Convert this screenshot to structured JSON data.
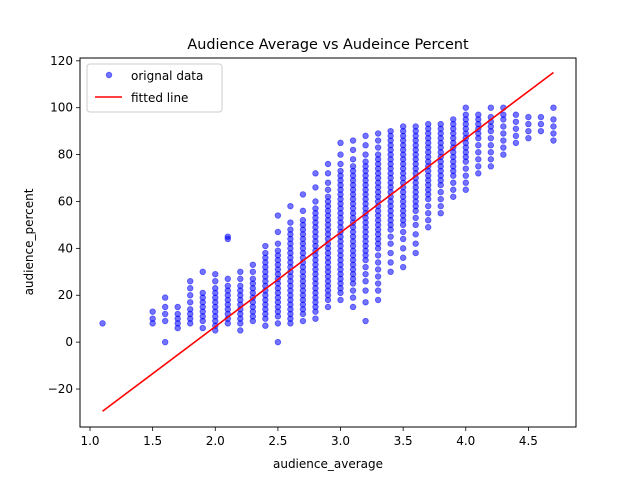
{
  "chart_data": {
    "type": "scatter",
    "title": "Audience Average vs Audeince Percent",
    "xlabel": "audience_average",
    "ylabel": "audience_percent",
    "xlim": [
      0.92,
      4.88
    ],
    "ylim": [
      -36.2,
      121.2
    ],
    "xticks": [
      "1.0",
      "1.5",
      "2.0",
      "2.5",
      "3.0",
      "3.5",
      "4.0",
      "4.5"
    ],
    "xtick_values": [
      1.0,
      1.5,
      2.0,
      2.5,
      3.0,
      3.5,
      4.0,
      4.5
    ],
    "yticks": [
      "−20",
      "0",
      "20",
      "40",
      "60",
      "80",
      "100",
      "120"
    ],
    "ytick_values": [
      -20,
      0,
      20,
      40,
      60,
      80,
      100,
      120
    ],
    "grid": false,
    "legend_position": "top-left",
    "series": [
      {
        "name": "orignal data",
        "kind": "scatter",
        "color": "#0000ff",
        "opacity": 0.55,
        "columns": [
          {
            "x": 1.1,
            "y": [
              8
            ]
          },
          {
            "x": 1.5,
            "y": [
              8,
              10,
              13
            ]
          },
          {
            "x": 1.6,
            "y": [
              0,
              9,
              12,
              15,
              19
            ]
          },
          {
            "x": 1.7,
            "y": [
              6,
              8,
              10,
              12,
              15
            ]
          },
          {
            "x": 1.8,
            "y": [
              8,
              10,
              12,
              14,
              17,
              20,
              23,
              26
            ]
          },
          {
            "x": 1.9,
            "y": [
              6,
              9,
              11,
              13,
              15,
              17,
              19,
              21,
              30
            ]
          },
          {
            "x": 2.0,
            "y": [
              5,
              7,
              9,
              11,
              13,
              15,
              17,
              19,
              21,
              23,
              26,
              29
            ]
          },
          {
            "x": 2.1,
            "y": [
              8,
              10,
              12,
              14,
              16,
              18,
              20,
              22,
              24,
              27,
              44,
              45
            ]
          },
          {
            "x": 2.2,
            "y": [
              5,
              8,
              10,
              12,
              14,
              16,
              18,
              20,
              22,
              24,
              27,
              30
            ]
          },
          {
            "x": 2.3,
            "y": [
              9,
              11,
              13,
              15,
              17,
              19,
              21,
              23,
              25,
              27,
              30,
              33
            ]
          },
          {
            "x": 2.4,
            "y": [
              7,
              10,
              12,
              14,
              16,
              18,
              20,
              22,
              24,
              26,
              28,
              30,
              32,
              34,
              36,
              38,
              41
            ]
          },
          {
            "x": 2.5,
            "y": [
              0,
              8,
              11,
              13,
              15,
              17,
              19,
              21,
              23,
              25,
              27,
              29,
              31,
              33,
              35,
              37,
              39,
              42,
              47,
              54
            ]
          },
          {
            "x": 2.6,
            "y": [
              8,
              10,
              12,
              14,
              16,
              18,
              20,
              22,
              24,
              26,
              28,
              30,
              32,
              34,
              36,
              38,
              40,
              42,
              44,
              46,
              48,
              51,
              58
            ]
          },
          {
            "x": 2.7,
            "y": [
              9,
              12,
              14,
              16,
              18,
              20,
              22,
              24,
              26,
              28,
              30,
              32,
              34,
              36,
              38,
              40,
              42,
              44,
              46,
              48,
              50,
              52,
              56,
              63
            ]
          },
          {
            "x": 2.8,
            "y": [
              10,
              13,
              15,
              17,
              19,
              21,
              23,
              25,
              27,
              29,
              31,
              33,
              35,
              37,
              39,
              41,
              43,
              45,
              47,
              49,
              51,
              53,
              55,
              57,
              60,
              66,
              72
            ]
          },
          {
            "x": 2.9,
            "y": [
              15,
              18,
              20,
              22,
              24,
              26,
              28,
              30,
              32,
              34,
              36,
              38,
              40,
              42,
              44,
              46,
              48,
              50,
              52,
              54,
              56,
              58,
              60,
              62,
              65,
              68,
              72,
              76
            ]
          },
          {
            "x": 3.0,
            "y": [
              18,
              21,
              23,
              25,
              27,
              29,
              31,
              33,
              35,
              37,
              39,
              41,
              43,
              45,
              47,
              49,
              51,
              53,
              55,
              57,
              59,
              61,
              63,
              65,
              67,
              69,
              71,
              73,
              76,
              80,
              85
            ]
          },
          {
            "x": 3.1,
            "y": [
              15,
              19,
              22,
              25,
              27,
              29,
              31,
              33,
              35,
              37,
              39,
              41,
              43,
              45,
              47,
              49,
              51,
              53,
              55,
              57,
              59,
              61,
              63,
              65,
              67,
              69,
              71,
              73,
              75,
              78,
              82,
              86
            ]
          },
          {
            "x": 3.2,
            "y": [
              9,
              17,
              22,
              26,
              29,
              32,
              35,
              37,
              39,
              41,
              43,
              45,
              47,
              49,
              51,
              53,
              55,
              57,
              59,
              61,
              63,
              65,
              67,
              69,
              71,
              73,
              75,
              77,
              80,
              84,
              88
            ]
          },
          {
            "x": 3.3,
            "y": [
              18,
              22,
              25,
              28,
              31,
              34,
              37,
              40,
              42,
              44,
              46,
              48,
              50,
              52,
              54,
              56,
              58,
              60,
              62,
              64,
              66,
              68,
              70,
              72,
              74,
              76,
              78,
              80,
              83,
              86,
              89
            ]
          },
          {
            "x": 3.4,
            "y": [
              30,
              34,
              38,
              42,
              45,
              48,
              50,
              52,
              54,
              56,
              58,
              60,
              62,
              64,
              66,
              68,
              70,
              72,
              74,
              76,
              78,
              80,
              82,
              84,
              86,
              88,
              90
            ]
          },
          {
            "x": 3.5,
            "y": [
              32,
              36,
              40,
              44,
              47,
              50,
              52,
              54,
              56,
              58,
              60,
              62,
              64,
              66,
              68,
              70,
              72,
              74,
              76,
              78,
              80,
              82,
              84,
              86,
              88,
              90,
              92
            ]
          },
          {
            "x": 3.6,
            "y": [
              38,
              42,
              46,
              50,
              53,
              56,
              58,
              60,
              62,
              64,
              66,
              68,
              70,
              72,
              74,
              76,
              78,
              80,
              82,
              84,
              86,
              88,
              90,
              92
            ]
          },
          {
            "x": 3.7,
            "y": [
              49,
              52,
              55,
              58,
              61,
              63,
              65,
              67,
              69,
              71,
              73,
              75,
              77,
              79,
              81,
              83,
              85,
              87,
              89,
              91,
              93
            ]
          },
          {
            "x": 3.8,
            "y": [
              55,
              58,
              61,
              64,
              67,
              69,
              71,
              73,
              75,
              77,
              79,
              81,
              83,
              85,
              87,
              89,
              91,
              93
            ]
          },
          {
            "x": 3.9,
            "y": [
              62,
              65,
              68,
              71,
              73,
              75,
              77,
              79,
              81,
              83,
              85,
              87,
              89,
              91,
              93,
              95
            ]
          },
          {
            "x": 4.0,
            "y": [
              65,
              68,
              71,
              74,
              77,
              79,
              81,
              83,
              85,
              87,
              89,
              91,
              93,
              95,
              97,
              100
            ]
          },
          {
            "x": 4.1,
            "y": [
              72,
              75,
              78,
              81,
              84,
              87,
              89,
              91,
              93,
              95,
              97
            ]
          },
          {
            "x": 4.2,
            "y": [
              75,
              78,
              81,
              84,
              87,
              90,
              92,
              94,
              96,
              100
            ]
          },
          {
            "x": 4.3,
            "y": [
              80,
              83,
              86,
              89,
              92,
              95,
              97,
              100
            ]
          },
          {
            "x": 4.4,
            "y": [
              85,
              88,
              91,
              94,
              97
            ]
          },
          {
            "x": 4.5,
            "y": [
              87,
              90,
              93,
              96
            ]
          },
          {
            "x": 4.6,
            "y": [
              90,
              93,
              96
            ]
          },
          {
            "x": 4.7,
            "y": [
              86,
              89,
              92,
              95,
              100
            ]
          }
        ]
      },
      {
        "name": "fitted line",
        "kind": "line",
        "color": "#ff0000",
        "x": [
          1.1,
          4.7
        ],
        "y": [
          -29.5,
          115
        ]
      }
    ]
  }
}
